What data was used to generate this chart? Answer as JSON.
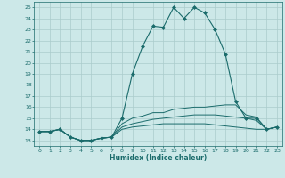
{
  "xlabel": "Humidex (Indice chaleur)",
  "bg_color": "#cce8e8",
  "grid_color": "#aacccc",
  "line_color": "#1a6b6b",
  "xlim": [
    -0.5,
    23.5
  ],
  "ylim": [
    12.5,
    25.5
  ],
  "xticks": [
    0,
    1,
    2,
    3,
    4,
    5,
    6,
    7,
    8,
    9,
    10,
    11,
    12,
    13,
    14,
    15,
    16,
    17,
    18,
    19,
    20,
    21,
    22,
    23
  ],
  "yticks": [
    13,
    14,
    15,
    16,
    17,
    18,
    19,
    20,
    21,
    22,
    23,
    24,
    25
  ],
  "lines": [
    {
      "x": [
        0,
        1,
        2,
        3,
        4,
        5,
        6,
        7,
        8,
        9,
        10,
        11,
        12,
        13,
        14,
        15,
        16,
        17,
        18,
        19,
        20,
        21,
        22,
        23
      ],
      "y": [
        13.8,
        13.8,
        14.0,
        13.3,
        13.0,
        13.0,
        13.2,
        13.3,
        15.0,
        19.0,
        21.5,
        23.3,
        23.2,
        25.0,
        24.0,
        25.0,
        24.5,
        23.0,
        20.8,
        16.5,
        15.0,
        15.0,
        14.0,
        14.2
      ],
      "marker": "D",
      "markersize": 2.0
    },
    {
      "x": [
        0,
        1,
        2,
        3,
        4,
        5,
        6,
        7,
        8,
        9,
        10,
        11,
        12,
        13,
        14,
        15,
        16,
        17,
        18,
        19,
        20,
        21,
        22,
        23
      ],
      "y": [
        13.8,
        13.8,
        14.0,
        13.3,
        13.0,
        13.0,
        13.2,
        13.3,
        14.5,
        15.0,
        15.2,
        15.5,
        15.5,
        15.8,
        15.9,
        16.0,
        16.0,
        16.1,
        16.2,
        16.2,
        15.3,
        15.1,
        14.0,
        14.2
      ],
      "marker": null,
      "markersize": 0
    },
    {
      "x": [
        0,
        1,
        2,
        3,
        4,
        5,
        6,
        7,
        8,
        9,
        10,
        11,
        12,
        13,
        14,
        15,
        16,
        17,
        18,
        19,
        20,
        21,
        22,
        23
      ],
      "y": [
        13.8,
        13.8,
        14.0,
        13.3,
        13.0,
        13.0,
        13.2,
        13.3,
        14.2,
        14.5,
        14.7,
        14.9,
        15.0,
        15.1,
        15.2,
        15.3,
        15.3,
        15.3,
        15.2,
        15.1,
        15.0,
        14.8,
        14.0,
        14.2
      ],
      "marker": null,
      "markersize": 0
    },
    {
      "x": [
        0,
        1,
        2,
        3,
        4,
        5,
        6,
        7,
        8,
        9,
        10,
        11,
        12,
        13,
        14,
        15,
        16,
        17,
        18,
        19,
        20,
        21,
        22,
        23
      ],
      "y": [
        13.8,
        13.8,
        14.0,
        13.3,
        13.0,
        13.0,
        13.2,
        13.3,
        14.0,
        14.2,
        14.3,
        14.4,
        14.5,
        14.5,
        14.5,
        14.5,
        14.5,
        14.4,
        14.3,
        14.2,
        14.1,
        14.0,
        14.0,
        14.2
      ],
      "marker": null,
      "markersize": 0
    }
  ]
}
